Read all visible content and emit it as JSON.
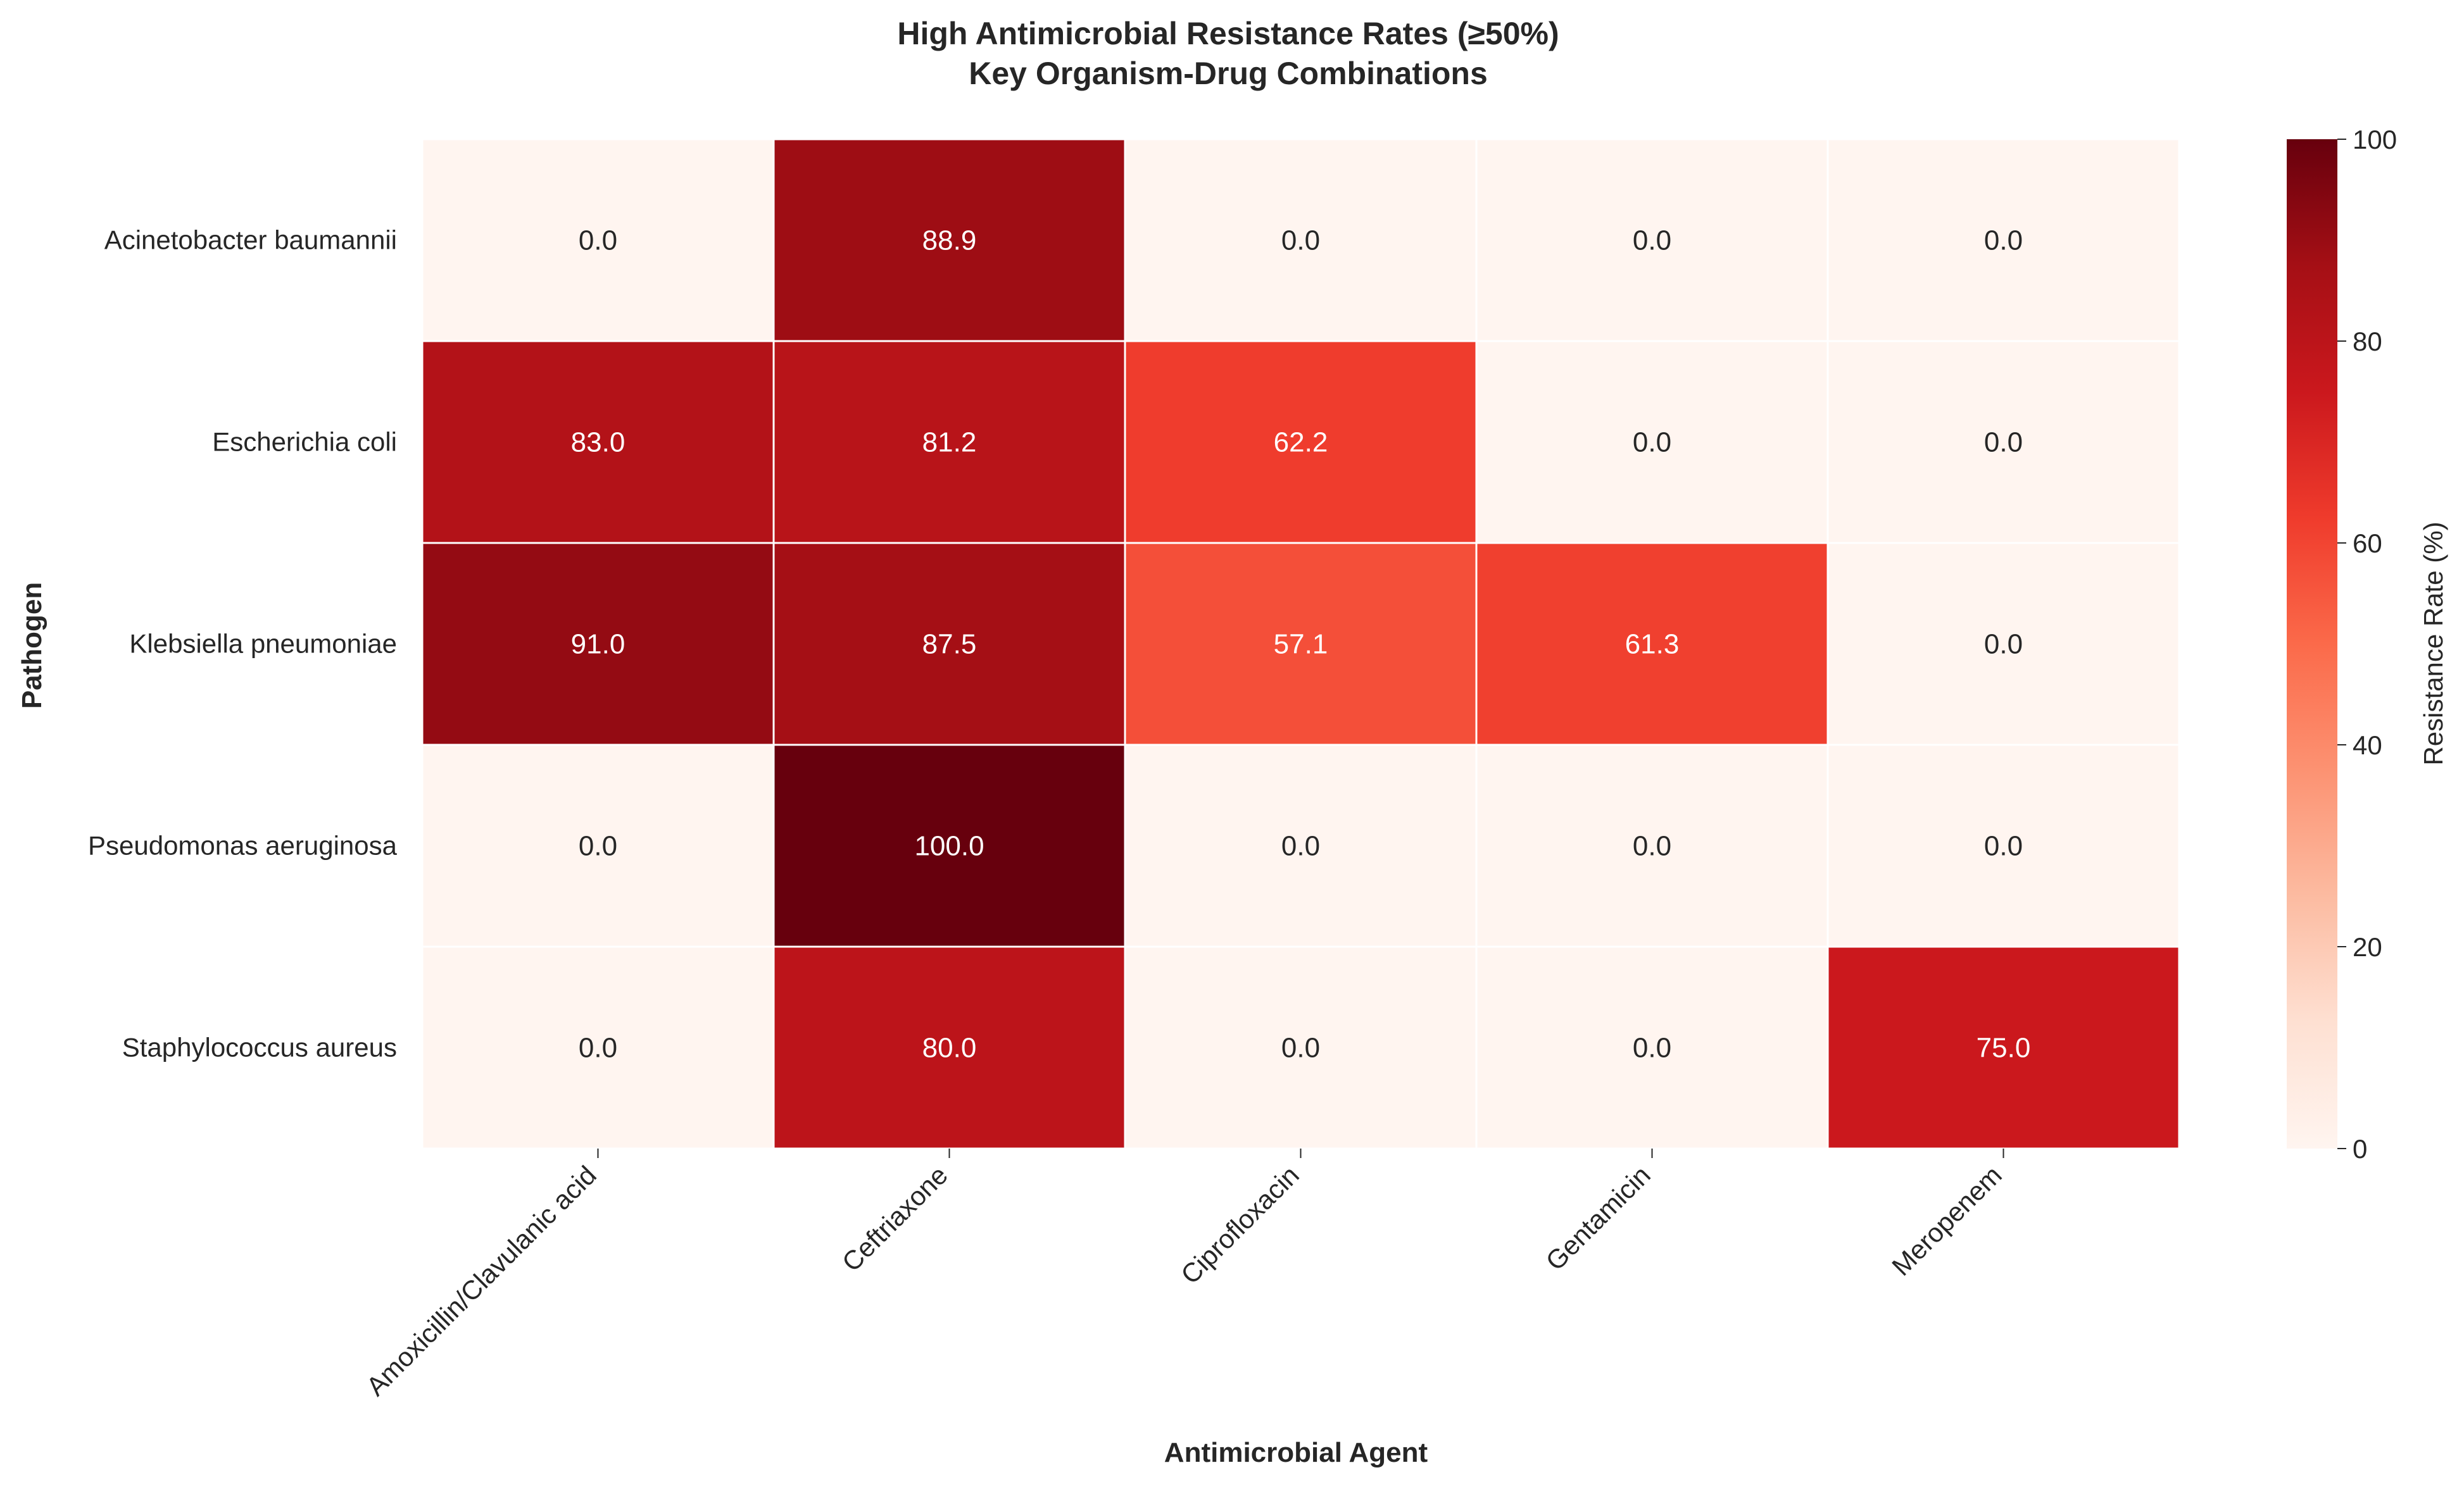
{
  "chart_data": {
    "type": "heatmap",
    "title": "High Antimicrobial Resistance Rates (≥50%)",
    "subtitle": "Key Organism-Drug Combinations",
    "xlabel": "Antimicrobial Agent",
    "ylabel": "Pathogen",
    "x_categories": [
      "Amoxicillin/Clavulanic acid",
      "Ceftriaxone",
      "Ciprofloxacin",
      "Gentamicin",
      "Meropenem"
    ],
    "y_categories": [
      "Acinetobacter baumannii",
      "Escherichia coli",
      "Klebsiella pneumoniae",
      "Pseudomonas aeruginosa",
      "Staphylococcus aureus"
    ],
    "values": [
      [
        0.0,
        88.9,
        0.0,
        0.0,
        0.0
      ],
      [
        83.0,
        81.2,
        62.2,
        0.0,
        0.0
      ],
      [
        91.0,
        87.5,
        57.1,
        61.3,
        0.0
      ],
      [
        0.0,
        100.0,
        0.0,
        0.0,
        0.0
      ],
      [
        0.0,
        80.0,
        0.0,
        0.0,
        75.0
      ]
    ],
    "value_format": "0.0",
    "colormap": "Reds",
    "colorbar": {
      "label": "Resistance Rate (%)",
      "range": [
        0,
        100
      ],
      "ticks": [
        0,
        20,
        40,
        60,
        80,
        100
      ]
    },
    "grid": false
  }
}
